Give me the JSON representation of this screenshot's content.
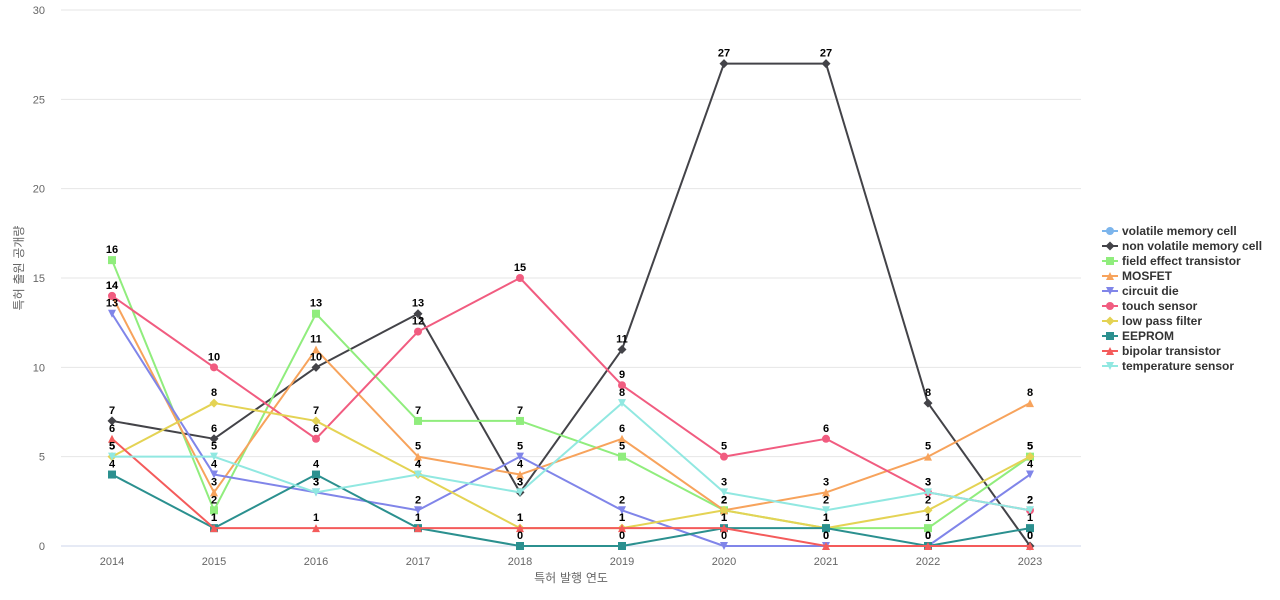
{
  "chart_data": {
    "type": "line",
    "title": "",
    "xlabel": "특허 발행 연도",
    "ylabel": "특허 출원 공개량",
    "ylim": [
      0,
      30
    ],
    "yticks": [
      0,
      5,
      10,
      15,
      20,
      25,
      30
    ],
    "grid": true,
    "legend_position": "right",
    "categories": [
      "2014",
      "2015",
      "2016",
      "2017",
      "2018",
      "2019",
      "2020",
      "2021",
      "2022",
      "2023"
    ],
    "series": [
      {
        "name": "volatile memory cell",
        "color": "#7cb5ec",
        "marker": "circle",
        "values": [
          null,
          null,
          null,
          null,
          null,
          null,
          null,
          null,
          null,
          null
        ]
      },
      {
        "name": "non volatile memory cell",
        "color": "#434348",
        "marker": "diamond",
        "values": [
          7,
          6,
          10,
          13,
          3,
          11,
          27,
          27,
          8,
          0
        ]
      },
      {
        "name": "field effect transistor",
        "color": "#90ed7d",
        "marker": "square",
        "values": [
          16,
          2,
          13,
          7,
          7,
          5,
          2,
          1,
          1,
          5
        ]
      },
      {
        "name": "MOSFET",
        "color": "#f7a35c",
        "marker": "triangle",
        "values": [
          14,
          3,
          11,
          5,
          4,
          6,
          2,
          3,
          5,
          8
        ]
      },
      {
        "name": "circuit die",
        "color": "#8085e9",
        "marker": "triangle-down",
        "values": [
          13,
          4,
          3,
          2,
          5,
          2,
          0,
          0,
          0,
          4
        ]
      },
      {
        "name": "touch sensor",
        "color": "#f15c80",
        "marker": "circle",
        "values": [
          14,
          10,
          6,
          12,
          15,
          9,
          5,
          6,
          3,
          2
        ]
      },
      {
        "name": "low pass filter",
        "color": "#e4d354",
        "marker": "diamond",
        "values": [
          5,
          8,
          7,
          4,
          1,
          1,
          2,
          1,
          2,
          5
        ]
      },
      {
        "name": "EEPROM",
        "color": "#2b908f",
        "marker": "square",
        "values": [
          4,
          1,
          4,
          1,
          0,
          0,
          1,
          1,
          0,
          1
        ]
      },
      {
        "name": "bipolar transistor",
        "color": "#f45b5b",
        "marker": "triangle",
        "values": [
          6,
          1,
          1,
          1,
          1,
          1,
          1,
          0,
          0,
          0
        ]
      },
      {
        "name": "temperature sensor",
        "color": "#91e8e1",
        "marker": "triangle-down",
        "values": [
          5,
          5,
          3,
          4,
          3,
          8,
          3,
          2,
          3,
          2
        ]
      }
    ]
  }
}
